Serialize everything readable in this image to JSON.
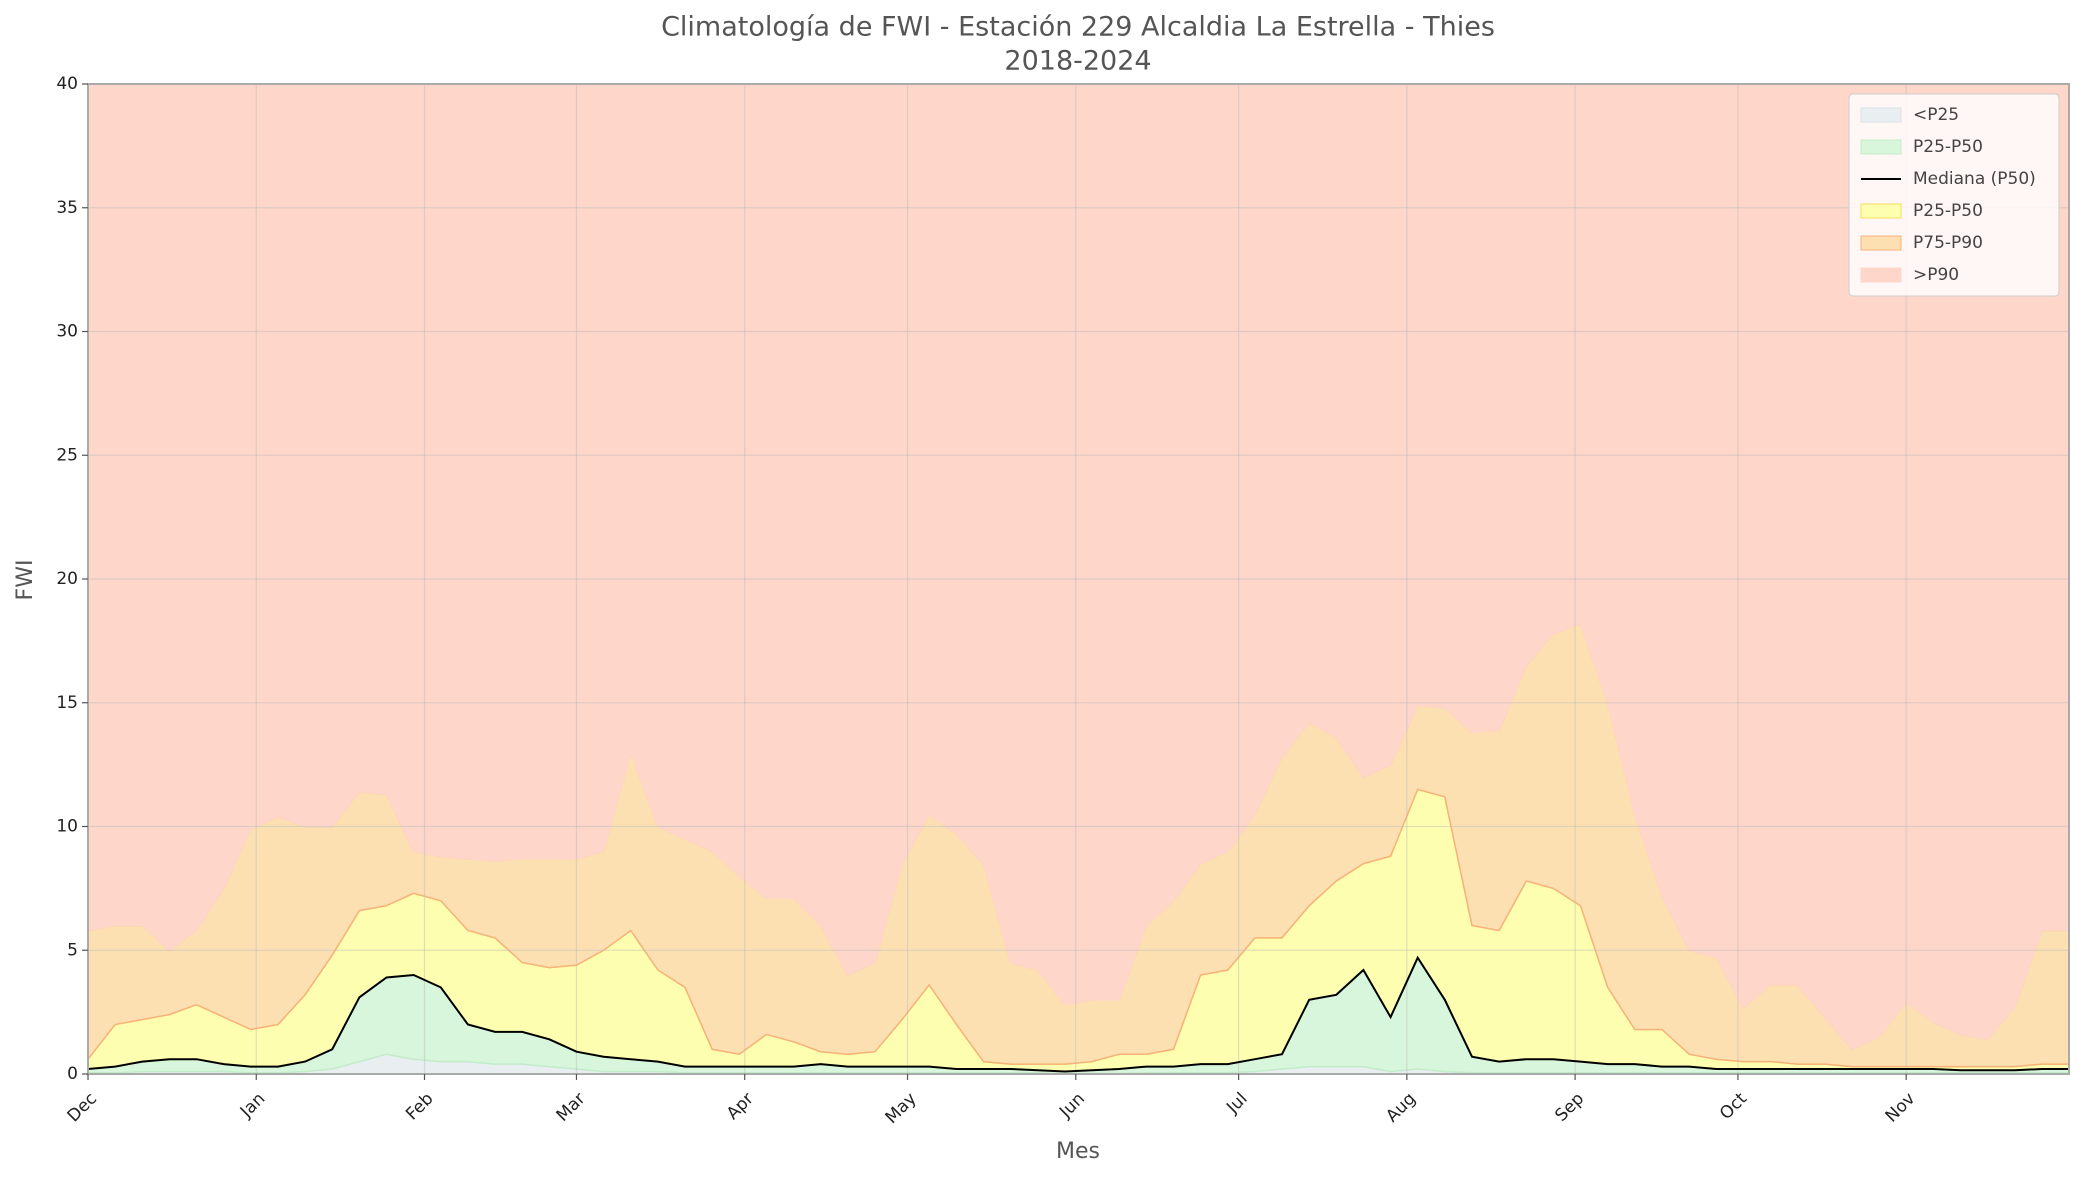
{
  "chart_data": {
    "type": "percentile_bands",
    "title": "Climatología de FWI - Estación 229 Alcaldia La Estrella - Thies",
    "subtitle": "2018-2024",
    "x_label": "Mes",
    "y_label": "FWI",
    "xlim": [
      0,
      365
    ],
    "ylim": [
      0,
      40
    ],
    "yticks": [
      0,
      5,
      10,
      15,
      20,
      25,
      30,
      35,
      40
    ],
    "xticks": [
      {
        "value": 0,
        "label": "Dec"
      },
      {
        "value": 31,
        "label": "Jan"
      },
      {
        "value": 62,
        "label": "Feb"
      },
      {
        "value": 90,
        "label": "Mar"
      },
      {
        "value": 121,
        "label": "Apr"
      },
      {
        "value": 151,
        "label": "May"
      },
      {
        "value": 182,
        "label": "Jun"
      },
      {
        "value": 212,
        "label": "Jul"
      },
      {
        "value": 243,
        "label": "Aug"
      },
      {
        "value": 274,
        "label": "Sep"
      },
      {
        "value": 304,
        "label": "Oct"
      },
      {
        "value": 335,
        "label": "Nov"
      }
    ],
    "grid": true,
    "legend": "upper right",
    "x": [
      0,
      5,
      10,
      15,
      20,
      25,
      30,
      35,
      40,
      45,
      50,
      55,
      60,
      65,
      70,
      75,
      80,
      85,
      90,
      95,
      100,
      105,
      110,
      115,
      120,
      125,
      130,
      135,
      140,
      145,
      150,
      155,
      160,
      165,
      170,
      175,
      180,
      185,
      190,
      195,
      200,
      205,
      210,
      215,
      220,
      225,
      230,
      235,
      240,
      245,
      250,
      255,
      260,
      265,
      270,
      275,
      280,
      285,
      290,
      295,
      300,
      305,
      310,
      315,
      320,
      325,
      330,
      335,
      340,
      345,
      350,
      355,
      360,
      365
    ],
    "series": [
      {
        "name": "<P25",
        "color": "#e9eef1",
        "edgecolor": "#d8e2e8",
        "values": [
          0.05,
          0.05,
          0.1,
          0.1,
          0.1,
          0.1,
          0.05,
          0.05,
          0.1,
          0.2,
          0.5,
          0.8,
          0.6,
          0.5,
          0.5,
          0.4,
          0.4,
          0.3,
          0.2,
          0.1,
          0.1,
          0.1,
          0.05,
          0.05,
          0.05,
          0.05,
          0.05,
          0.05,
          0.05,
          0.05,
          0.05,
          0.05,
          0.05,
          0.05,
          0.05,
          0.05,
          0.02,
          0.02,
          0.02,
          0.05,
          0.05,
          0.05,
          0.05,
          0.1,
          0.2,
          0.3,
          0.3,
          0.3,
          0.1,
          0.2,
          0.1,
          0.05,
          0.05,
          0.05,
          0.05,
          0.05,
          0.05,
          0.05,
          0.05,
          0.05,
          0.05,
          0.05,
          0.05,
          0.05,
          0.05,
          0.05,
          0.05,
          0.05,
          0.05,
          0.05,
          0.05,
          0.05,
          0.05,
          0.05
        ]
      },
      {
        "name": "P25-P50",
        "color": "#d8f6dc",
        "edgecolor": "#c3ecc9"
      },
      {
        "name": "Mediana (P50)",
        "color": "#000000",
        "kind": "line",
        "values": [
          0.2,
          0.3,
          0.5,
          0.6,
          0.6,
          0.4,
          0.3,
          0.3,
          0.5,
          1.0,
          3.1,
          3.9,
          4.0,
          3.5,
          2.0,
          1.7,
          1.7,
          1.4,
          0.9,
          0.7,
          0.6,
          0.5,
          0.3,
          0.3,
          0.3,
          0.3,
          0.3,
          0.4,
          0.3,
          0.3,
          0.3,
          0.3,
          0.2,
          0.2,
          0.2,
          0.15,
          0.1,
          0.15,
          0.2,
          0.3,
          0.3,
          0.4,
          0.4,
          0.6,
          0.8,
          3.0,
          3.2,
          4.2,
          2.3,
          4.7,
          3.0,
          0.7,
          0.5,
          0.6,
          0.6,
          0.5,
          0.4,
          0.4,
          0.3,
          0.3,
          0.2,
          0.2,
          0.2,
          0.2,
          0.2,
          0.2,
          0.2,
          0.2,
          0.2,
          0.15,
          0.15,
          0.15,
          0.2,
          0.2
        ]
      },
      {
        "name": "P25-P50",
        "color": "#fefeb0",
        "edgecolor": "#f7dc5c",
        "values": [
          0.6,
          2.0,
          2.2,
          2.4,
          2.8,
          2.3,
          1.8,
          2.0,
          3.2,
          4.8,
          6.6,
          6.8,
          7.3,
          7.0,
          5.8,
          5.5,
          4.5,
          4.3,
          4.4,
          5.0,
          5.8,
          4.2,
          3.5,
          1.0,
          0.8,
          1.6,
          1.3,
          0.9,
          0.8,
          0.9,
          2.2,
          3.6,
          2.0,
          0.5,
          0.4,
          0.4,
          0.4,
          0.5,
          0.8,
          0.8,
          1.0,
          4.0,
          4.2,
          5.5,
          5.5,
          6.8,
          7.8,
          8.5,
          8.8,
          11.5,
          11.2,
          6.0,
          5.8,
          7.8,
          7.5,
          6.8,
          3.5,
          1.8,
          1.8,
          0.8,
          0.6,
          0.5,
          0.5,
          0.4,
          0.4,
          0.3,
          0.3,
          0.3,
          0.3,
          0.3,
          0.3,
          0.3,
          0.4,
          0.4
        ]
      },
      {
        "name": "P75-P90",
        "color": "#fde0b2",
        "edgecolor": "#f6b27a",
        "values": [
          5.8,
          6.0,
          6.0,
          5.0,
          5.8,
          7.5,
          9.9,
          10.4,
          10.0,
          10.0,
          11.4,
          11.3,
          9.0,
          8.8,
          8.7,
          8.6,
          8.7,
          8.7,
          8.7,
          9.0,
          13.0,
          10.0,
          9.5,
          9.0,
          8.0,
          7.1,
          7.1,
          6.0,
          4.0,
          4.5,
          8.5,
          10.5,
          9.7,
          8.5,
          4.5,
          4.2,
          2.8,
          3.0,
          3.0,
          6.0,
          7.0,
          8.5,
          9.0,
          10.5,
          12.8,
          14.2,
          13.6,
          12.0,
          12.5,
          14.9,
          14.8,
          13.8,
          13.9,
          16.5,
          17.8,
          18.2,
          15.0,
          10.5,
          7.2,
          5.0,
          4.7,
          2.7,
          3.6,
          3.6,
          2.3,
          1.0,
          1.5,
          2.9,
          2.1,
          1.6,
          1.4,
          2.7,
          5.8,
          5.8
        ]
      },
      {
        "name": ">P90",
        "color": "#ffd6ca",
        "edgecolor": "#ffd6ca"
      }
    ]
  }
}
